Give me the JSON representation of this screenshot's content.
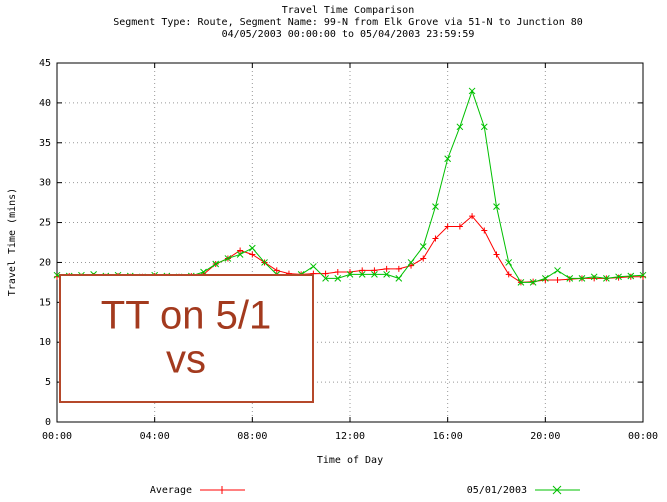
{
  "chart_data": {
    "type": "line",
    "title": "Travel Time Comparison",
    "subtitle": [
      "Segment Type: Route, Segment Name: 99-N from Elk Grove via 51-N to Junction 80",
      "04/05/2003 00:00:00 to 05/04/2003 23:59:59"
    ],
    "x_label": "Time of Day",
    "y_label": "Travel Time (mins)",
    "annotation": [
      "TT on 5/1",
      "vs"
    ],
    "x": [
      0,
      0.5,
      1,
      1.5,
      2,
      2.5,
      3,
      3.5,
      4,
      4.5,
      5,
      5.5,
      6,
      6.5,
      7,
      7.5,
      8,
      8.5,
      9,
      9.5,
      10,
      10.5,
      11,
      11.5,
      12,
      12.5,
      13,
      13.5,
      14,
      14.5,
      15,
      15.5,
      16,
      16.5,
      17,
      17.5,
      18,
      18.5,
      19,
      19.5,
      20,
      20.5,
      21,
      21.5,
      22,
      22.5,
      23,
      23.5,
      24
    ],
    "series": [
      {
        "name": "Average",
        "color": "#ff0000",
        "marker": "plus",
        "values": [
          18.2,
          18.3,
          18.2,
          18.3,
          18.2,
          18.3,
          18.2,
          18.2,
          18.3,
          18.2,
          18.2,
          18.3,
          18.5,
          19.8,
          20.5,
          21.5,
          21,
          20,
          19,
          18.6,
          18.5,
          18.6,
          18.6,
          18.8,
          18.8,
          19,
          19,
          19.2,
          19.2,
          19.6,
          20.5,
          23,
          24.5,
          24.5,
          25.8,
          24,
          21,
          18.5,
          17.5,
          17.6,
          17.8,
          17.8,
          17.9,
          18,
          18,
          18,
          18.1,
          18.2,
          18.2
        ]
      },
      {
        "name": "05/01/2003",
        "color": "#00c000",
        "marker": "cross",
        "values": [
          18.4,
          18.3,
          18.4,
          18.5,
          18.3,
          18.4,
          18.3,
          18.2,
          18.4,
          18.3,
          18.2,
          18.3,
          18.8,
          19.8,
          20.5,
          21,
          21.8,
          20,
          18.5,
          18,
          18.5,
          19.5,
          18,
          18,
          18.5,
          18.5,
          18.5,
          18.5,
          18,
          20,
          22,
          27,
          33,
          37,
          41.5,
          37,
          27,
          20,
          17.5,
          17.5,
          18,
          19,
          18,
          18,
          18.2,
          18,
          18.2,
          18.3,
          18.4
        ]
      }
    ],
    "xlim": [
      0,
      24
    ],
    "xticks": [
      {
        "value": 0,
        "label": "00:00"
      },
      {
        "value": 4,
        "label": "04:00"
      },
      {
        "value": 8,
        "label": "08:00"
      },
      {
        "value": 12,
        "label": "12:00"
      },
      {
        "value": 16,
        "label": "16:00"
      },
      {
        "value": 20,
        "label": "20:00"
      },
      {
        "value": 24,
        "label": "00:00"
      }
    ],
    "ylim": [
      0,
      45
    ],
    "yticks": [
      0,
      5,
      10,
      15,
      20,
      25,
      30,
      35,
      40,
      45
    ],
    "grid": true,
    "legend": "bottom"
  }
}
